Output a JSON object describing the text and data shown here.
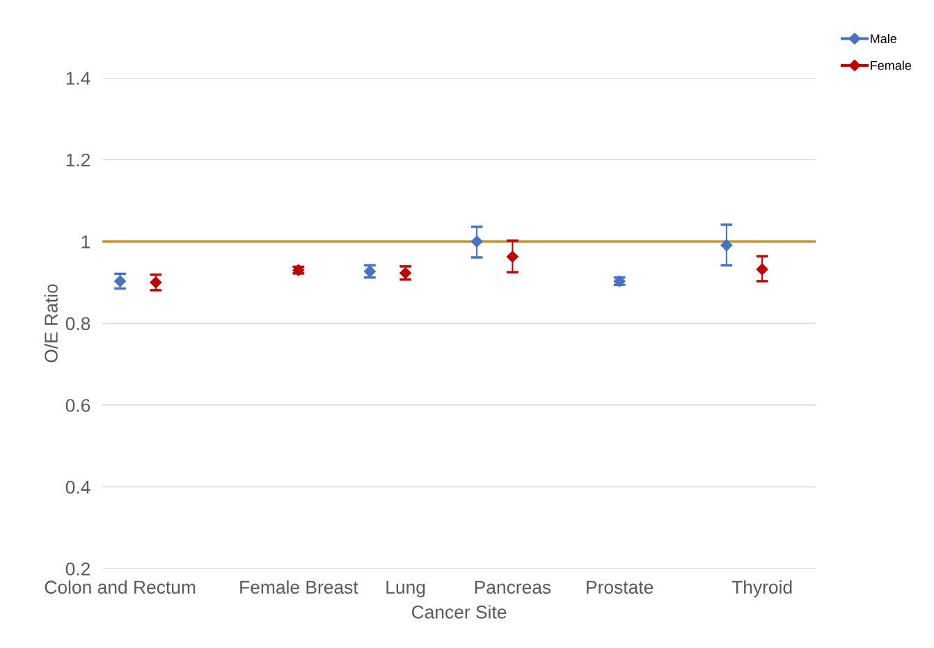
{
  "chart_data": {
    "type": "line",
    "xlabel": "Cancer Site",
    "ylabel": "O/E Ratio",
    "categories": [
      "Colon and Rectum",
      null,
      null,
      null,
      null,
      "Female Breast",
      null,
      null,
      "Lung",
      null,
      null,
      "Pancreas",
      null,
      null,
      "Prostate",
      null,
      null,
      null,
      "Thyroid",
      null
    ],
    "series": [
      {
        "name": "Male",
        "color": "#4472c4",
        "values": [
          0.903,
          null,
          null,
          null,
          null,
          null,
          null,
          0.927,
          null,
          null,
          1.0,
          null,
          null,
          null,
          0.903,
          null,
          null,
          0.991,
          null,
          null
        ],
        "errors": [
          0.018,
          null,
          null,
          null,
          null,
          null,
          null,
          0.015,
          null,
          null,
          [
            0.961,
            1.036
          ],
          null,
          null,
          null,
          0.009,
          null,
          null,
          [
            0.942,
            1.041
          ],
          null,
          null
        ]
      },
      {
        "name": "Female",
        "color": "#c00000",
        "values": [
          null,
          0.9,
          null,
          null,
          null,
          0.93,
          null,
          null,
          0.923,
          null,
          null,
          0.963,
          null,
          null,
          null,
          null,
          null,
          null,
          0.932,
          null
        ],
        "errors": [
          null,
          0.019,
          null,
          null,
          null,
          0.008,
          null,
          null,
          0.016,
          null,
          null,
          [
            0.925,
            1.002
          ],
          null,
          null,
          null,
          null,
          null,
          null,
          [
            0.903,
            0.964
          ],
          null
        ]
      }
    ],
    "ylim": [
      0.2,
      1.4
    ],
    "yticks": [
      {
        "value": 0.2,
        "label": "0.2"
      },
      {
        "value": 0.4,
        "label": "0.4"
      },
      {
        "value": 0.6,
        "label": "0.6"
      },
      {
        "value": 0.8,
        "label": "0.8"
      },
      {
        "value": 1,
        "label": "1"
      },
      {
        "value": 1.2,
        "label": "1.2"
      },
      {
        "value": 1.4,
        "label": "1.4"
      }
    ],
    "ref_lines": [
      {
        "axis": "y",
        "value": 1,
        "color": "#c9962a"
      }
    ],
    "grid": "y",
    "legend": "top right",
    "marker": "diamond"
  }
}
